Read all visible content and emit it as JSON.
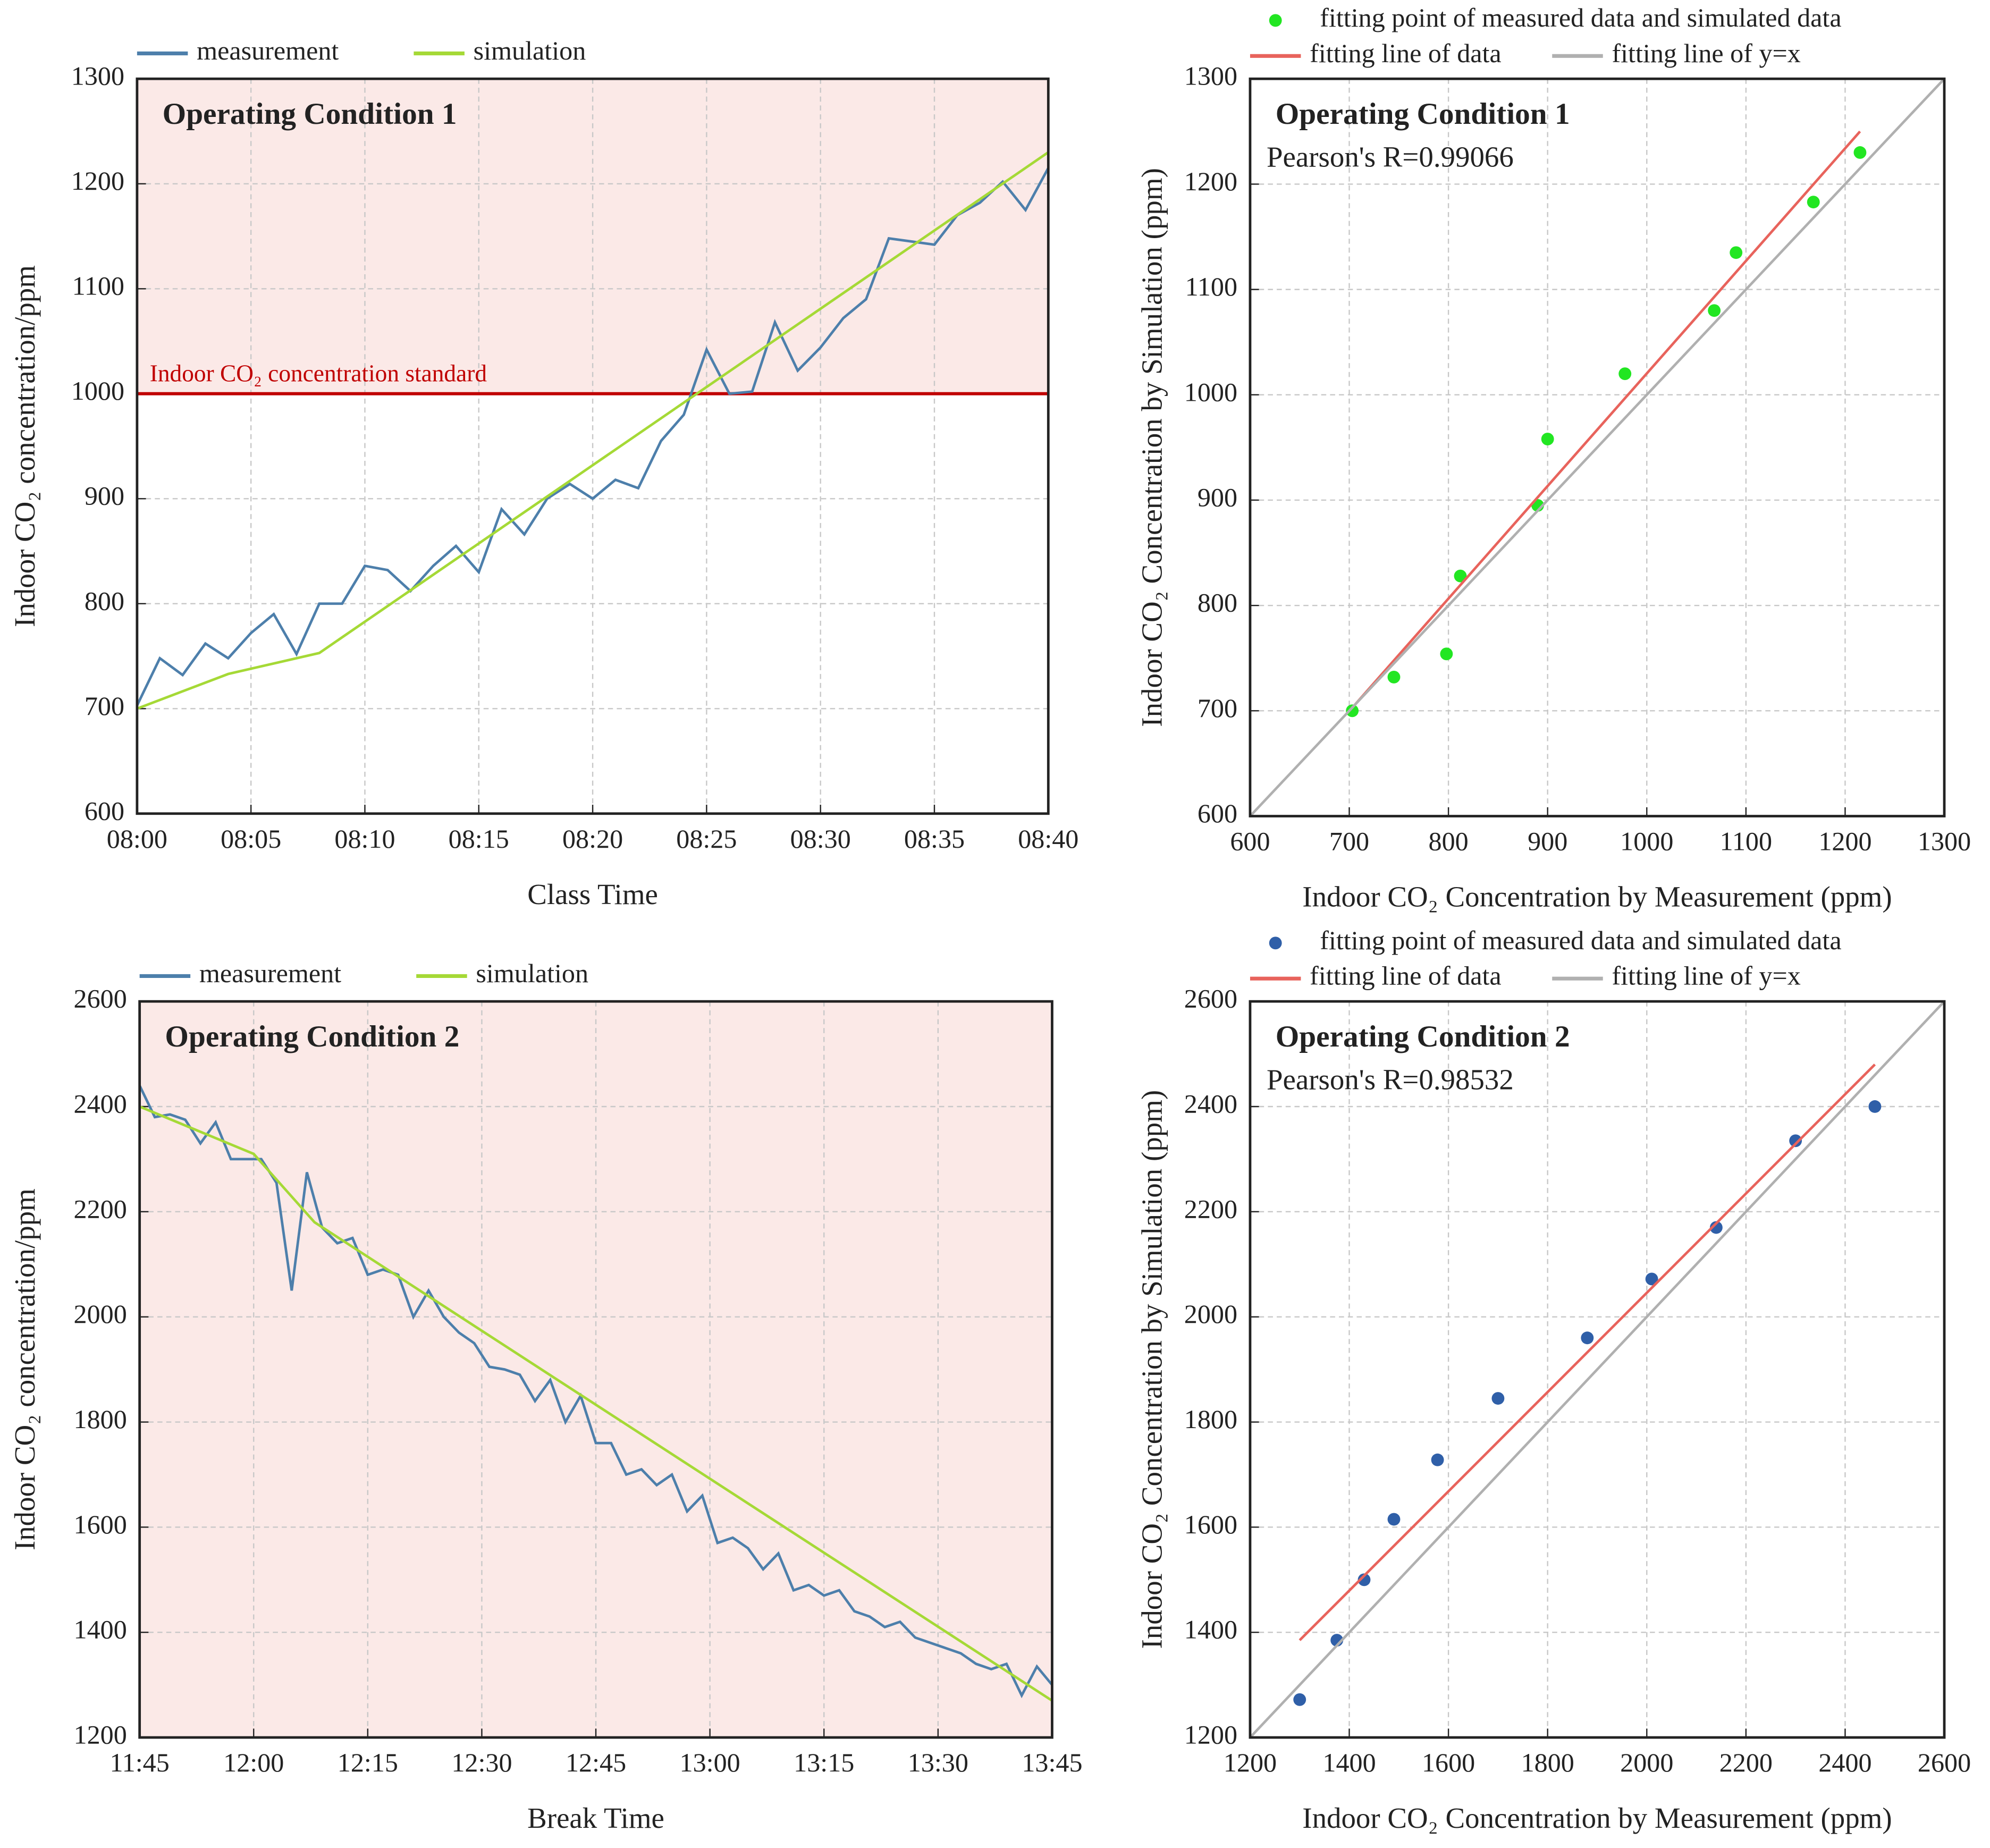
{
  "chart_data": [
    {
      "type": "line",
      "panel_label": "Operating Condition 1",
      "x_label": "Class Time",
      "y_label": "Indoor CO₂ concentration/ppm",
      "xlim": [
        480,
        520
      ],
      "xticks": [
        {
          "value": 480,
          "label": "08:00"
        },
        {
          "value": 485,
          "label": "08:05"
        },
        {
          "value": 490,
          "label": "08:10"
        },
        {
          "value": 495,
          "label": "08:15"
        },
        {
          "value": 500,
          "label": "08:20"
        },
        {
          "value": 505,
          "label": "08:25"
        },
        {
          "value": 510,
          "label": "08:30"
        },
        {
          "value": 515,
          "label": "08:35"
        },
        {
          "value": 520,
          "label": "08:40"
        }
      ],
      "ylim": [
        600,
        1300
      ],
      "yticks": [
        600,
        700,
        800,
        900,
        1000,
        1100,
        1200,
        1300
      ],
      "grid": true,
      "legend": "top",
      "shade_above": 1000,
      "shade_color": "#fbe9e7",
      "reference_line": {
        "value": 1000,
        "label": "Indoor CO₂ concentration standard",
        "color": "#c00000"
      },
      "series": [
        {
          "name": "measurement",
          "color": "#4d7fab",
          "x": [
            480,
            481,
            482,
            483,
            484,
            485,
            486,
            487,
            488,
            489,
            490,
            491,
            492,
            493,
            494,
            495,
            496,
            497,
            498,
            499,
            500,
            501,
            502,
            503,
            504,
            505,
            506,
            507,
            508,
            509,
            510,
            511,
            512,
            513,
            514,
            515,
            516,
            517,
            518,
            519,
            520
          ],
          "values": [
            703,
            748,
            732,
            762,
            748,
            772,
            790,
            752,
            800,
            800,
            836,
            832,
            812,
            836,
            855,
            830,
            890,
            866,
            900,
            914,
            900,
            918,
            910,
            955,
            980,
            1042,
            1000,
            1002,
            1068,
            1022,
            1044,
            1072,
            1090,
            1148,
            1145,
            1142,
            1170,
            1182,
            1202,
            1175,
            1215
          ]
        },
        {
          "name": "simulation",
          "color": "#a5d936",
          "x": [
            480,
            484,
            488,
            520
          ],
          "values": [
            700,
            733,
            753,
            1230
          ]
        }
      ]
    },
    {
      "type": "scatter",
      "panel_label": "Operating Condition 1",
      "annotation": "Pearson's R=0.99066",
      "x_label": "Indoor CO₂ Concentration by Measurement (ppm)",
      "y_label": "Indoor CO₂ Concentration by Simulation (ppm)",
      "xlim": [
        600,
        1300
      ],
      "xticks": [
        600,
        700,
        800,
        900,
        1000,
        1100,
        1200,
        1300
      ],
      "ylim": [
        600,
        1300
      ],
      "yticks": [
        600,
        700,
        800,
        900,
        1000,
        1100,
        1200,
        1300
      ],
      "grid": true,
      "legend": "top",
      "series": [
        {
          "name": "fitting point of measured data and simulated data",
          "color": "#22e622",
          "style": "points",
          "x": [
            703,
            745,
            798,
            812,
            890,
            900,
            978,
            1068,
            1090,
            1168,
            1215
          ],
          "values": [
            700,
            732,
            754,
            828,
            895,
            958,
            1020,
            1080,
            1135,
            1183,
            1230
          ]
        },
        {
          "name": "fitting line of data",
          "color": "#e8635c",
          "style": "line",
          "x": [
            705,
            1215
          ],
          "values": [
            705,
            1250
          ]
        },
        {
          "name": "fitting line of y=x",
          "color": "#b0b0b0",
          "style": "line",
          "x": [
            600,
            1300
          ],
          "values": [
            600,
            1300
          ]
        }
      ]
    },
    {
      "type": "line",
      "panel_label": "Operating Condition 2",
      "x_label": "Break Time",
      "y_label": "Indoor CO₂ concentration/ppm",
      "xlim": [
        705,
        825
      ],
      "xticks": [
        {
          "value": 705,
          "label": "11:45"
        },
        {
          "value": 720,
          "label": "12:00"
        },
        {
          "value": 735,
          "label": "12:15"
        },
        {
          "value": 750,
          "label": "12:30"
        },
        {
          "value": 765,
          "label": "12:45"
        },
        {
          "value": 780,
          "label": "13:00"
        },
        {
          "value": 795,
          "label": "13:15"
        },
        {
          "value": 810,
          "label": "13:30"
        },
        {
          "value": 825,
          "label": "13:45"
        }
      ],
      "ylim": [
        1200,
        2600
      ],
      "yticks": [
        1200,
        1400,
        1600,
        1800,
        2000,
        2200,
        2400,
        2600
      ],
      "grid": true,
      "legend": "top",
      "shade_above": 1000,
      "shade_color": "#fbe9e7",
      "series": [
        {
          "name": "measurement",
          "color": "#4d7fab",
          "x": [
            705,
            707,
            709,
            711,
            713,
            715,
            717,
            719,
            721,
            723,
            725,
            727,
            729,
            731,
            733,
            735,
            737,
            739,
            741,
            743,
            745,
            747,
            749,
            751,
            753,
            755,
            757,
            759,
            761,
            763,
            765,
            767,
            769,
            771,
            773,
            775,
            777,
            779,
            781,
            783,
            785,
            787,
            789,
            791,
            793,
            795,
            797,
            799,
            801,
            803,
            805,
            807,
            809,
            811,
            813,
            815,
            817,
            819,
            821,
            823,
            825
          ],
          "values": [
            2440,
            2380,
            2385,
            2375,
            2330,
            2370,
            2300,
            2300,
            2300,
            2255,
            2050,
            2275,
            2170,
            2140,
            2150,
            2080,
            2090,
            2080,
            2000,
            2050,
            2000,
            1970,
            1950,
            1905,
            1900,
            1890,
            1840,
            1880,
            1800,
            1850,
            1760,
            1760,
            1700,
            1710,
            1680,
            1700,
            1630,
            1660,
            1570,
            1580,
            1560,
            1520,
            1550,
            1480,
            1490,
            1470,
            1480,
            1440,
            1430,
            1410,
            1420,
            1390,
            1380,
            1370,
            1360,
            1340,
            1330,
            1340,
            1280,
            1335,
            1300
          ]
        },
        {
          "name": "simulation",
          "color": "#a5d936",
          "x": [
            705,
            720,
            728,
            825
          ],
          "values": [
            2400,
            2310,
            2180,
            1270
          ]
        }
      ]
    },
    {
      "type": "scatter",
      "panel_label": "Operating Condition 2",
      "annotation": "Pearson's R=0.98532",
      "x_label": "Indoor CO₂ Concentration by Measurement (ppm)",
      "y_label": "Indoor CO₂ Concentration by Simulation (ppm)",
      "xlim": [
        1200,
        2600
      ],
      "xticks": [
        1200,
        1400,
        1600,
        1800,
        2000,
        2200,
        2400,
        2600
      ],
      "ylim": [
        1200,
        2600
      ],
      "yticks": [
        1200,
        1400,
        1600,
        1800,
        2000,
        2200,
        2400,
        2600
      ],
      "grid": true,
      "legend": "top",
      "series": [
        {
          "name": "fitting point of measured data and simulated data",
          "color": "#2f5fa8",
          "style": "points",
          "x": [
            1300,
            1375,
            1430,
            1490,
            1578,
            1700,
            1880,
            2010,
            2140,
            2300,
            2460
          ],
          "values": [
            1272,
            1385,
            1500,
            1615,
            1728,
            1845,
            1960,
            2072,
            2170,
            2335,
            2400
          ]
        },
        {
          "name": "fitting line of data",
          "color": "#e8635c",
          "style": "line",
          "x": [
            1300,
            2460
          ],
          "values": [
            1385,
            2480
          ]
        },
        {
          "name": "fitting line of y=x",
          "color": "#b0b0b0",
          "style": "line",
          "x": [
            1200,
            2600
          ],
          "values": [
            1200,
            2600
          ]
        }
      ]
    }
  ]
}
